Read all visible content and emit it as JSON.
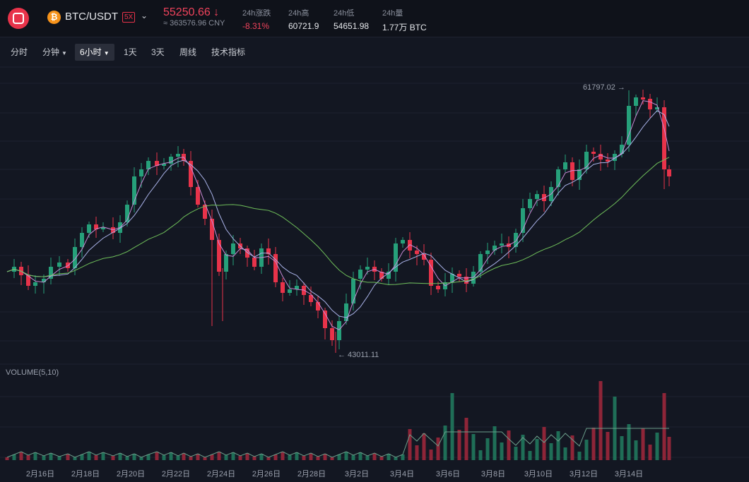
{
  "header": {
    "pair": "BTC/USDT",
    "coin_symbol": "₿",
    "leverage": "5X",
    "price": "55250.66 ↓",
    "price_cny": "≈ 363576.96 CNY",
    "stats": [
      {
        "label": "24h涨跌",
        "value": "-8.31%",
        "negative": true
      },
      {
        "label": "24h高",
        "value": "60721.9"
      },
      {
        "label": "24h低",
        "value": "54651.98"
      },
      {
        "label": "24h量",
        "value": "1.77万 BTC"
      }
    ]
  },
  "toolbar": {
    "items": [
      "分时",
      "分钟",
      "6小时",
      "1天",
      "3天",
      "周线",
      "技术指标"
    ],
    "active": "6小时"
  },
  "chart": {
    "high_label": "61797.02 →",
    "low_label": "← 43011.11",
    "volume_label": "VOLUME(5,10)",
    "x_labels": [
      "2月16日",
      "2月18日",
      "2月20日",
      "2月22日",
      "2月24日",
      "2月26日",
      "2月28日",
      "3月2日",
      "3月4日",
      "3月6日",
      "3月8日",
      "3月10日",
      "3月12日",
      "3月14日"
    ]
  },
  "colors": {
    "up": "#26a07a",
    "down": "#e8334a",
    "ma_fast": "#c98bd6",
    "ma_mid": "#a9b2e8",
    "ma_slow": "#6fbf5a"
  },
  "chart_data": {
    "type": "candlestick",
    "candle_count": 78,
    "period": "6小时",
    "high": 61797.02,
    "low": 43011.11,
    "volume_indicator": "VOLUME(5,10)"
  }
}
